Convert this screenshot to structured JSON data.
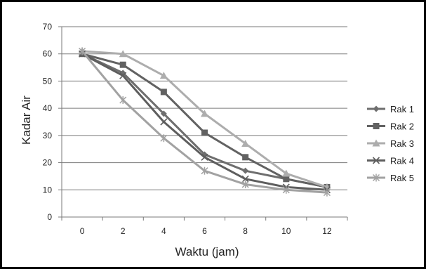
{
  "chart_data": {
    "type": "line",
    "title": "",
    "xlabel": "Waktu (jam)",
    "ylabel": "Kadar Air",
    "x": [
      0,
      2,
      4,
      6,
      8,
      10,
      12
    ],
    "ylim": [
      0,
      70
    ],
    "yticks": [
      0,
      10,
      20,
      30,
      40,
      50,
      60,
      70
    ],
    "grid": true,
    "legend": "right",
    "series": [
      {
        "name": "Rak 1",
        "values": [
          60,
          53,
          38,
          23,
          17,
          14,
          11
        ],
        "color": "#6e6e6e",
        "marker": "diamond"
      },
      {
        "name": "Rak 2",
        "values": [
          60,
          56,
          46,
          31,
          22,
          14,
          11
        ],
        "color": "#626262",
        "marker": "square"
      },
      {
        "name": "Rak 3",
        "values": [
          61,
          60,
          52,
          38,
          27,
          16,
          11
        ],
        "color": "#adadad",
        "marker": "triangle"
      },
      {
        "name": "Rak 4",
        "values": [
          60,
          52,
          35,
          22,
          14,
          11,
          10
        ],
        "color": "#5e5e5e",
        "marker": "x"
      },
      {
        "name": "Rak 5",
        "values": [
          61,
          43,
          29,
          17,
          12,
          10,
          9
        ],
        "color": "#a2a2a2",
        "marker": "star"
      }
    ]
  }
}
